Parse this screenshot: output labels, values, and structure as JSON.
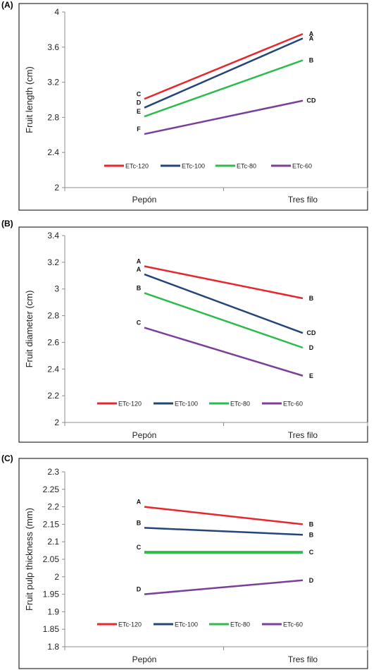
{
  "chart_data": [
    {
      "type": "line",
      "panel_label": "(A)",
      "title": "",
      "xlabel": "",
      "ylabel": "Fruit length (cm)",
      "categories": [
        "Pepón",
        "Tres filo"
      ],
      "ylim": [
        2,
        4
      ],
      "yticks": [
        "2",
        "2.4",
        "2.8",
        "3.2",
        "3.6",
        "4"
      ],
      "grid": false,
      "legend_position": "bottom-inside",
      "series": [
        {
          "name": "ETc-120",
          "color": "#e8262b",
          "values": [
            3.01,
            3.75
          ],
          "letters": [
            "C",
            "A"
          ]
        },
        {
          "name": "ETc-100",
          "color": "#23467a",
          "values": [
            2.91,
            3.7
          ],
          "letters": [
            "D",
            "A"
          ]
        },
        {
          "name": "ETc-80",
          "color": "#2dbb4b",
          "values": [
            2.81,
            3.45
          ],
          "letters": [
            "E",
            "B"
          ]
        },
        {
          "name": "ETc-60",
          "color": "#7b3f99",
          "values": [
            2.61,
            2.99
          ],
          "letters": [
            "F",
            "CD"
          ]
        }
      ]
    },
    {
      "type": "line",
      "panel_label": "(B)",
      "title": "",
      "xlabel": "",
      "ylabel": "Fruit diameter (cm)",
      "categories": [
        "Pepón",
        "Tres filo"
      ],
      "ylim": [
        2,
        3.4
      ],
      "yticks": [
        "2",
        "2.2",
        "2.4",
        "2.6",
        "2.8",
        "3",
        "3.2",
        "3.4"
      ],
      "grid": false,
      "legend_position": "bottom-inside",
      "series": [
        {
          "name": "ETc-120",
          "color": "#e8262b",
          "values": [
            3.17,
            2.93
          ],
          "letters": [
            "A",
            "B"
          ]
        },
        {
          "name": "ETc-100",
          "color": "#23467a",
          "values": [
            3.11,
            2.67
          ],
          "letters": [
            "A",
            "CD"
          ]
        },
        {
          "name": "ETc-80",
          "color": "#2dbb4b",
          "values": [
            2.97,
            2.56
          ],
          "letters": [
            "B",
            "D"
          ]
        },
        {
          "name": "ETc-60",
          "color": "#7b3f99",
          "values": [
            2.71,
            2.35
          ],
          "letters": [
            "C",
            "E"
          ]
        }
      ]
    },
    {
      "type": "line",
      "panel_label": "(C)",
      "title": "",
      "xlabel": "",
      "ylabel": "Fruit pulp thickness (mm)",
      "categories": [
        "Pepón",
        "Tres filo"
      ],
      "ylim": [
        1.8,
        2.3
      ],
      "yticks": [
        "1.8",
        "1.85",
        "1.9",
        "1.95",
        "2",
        "2.05",
        "2.1",
        "2.15",
        "2.2",
        "2.25",
        "2.3"
      ],
      "grid": false,
      "legend_position": "bottom-inside",
      "series": [
        {
          "name": "ETc-120",
          "color": "#e8262b",
          "values": [
            2.2,
            2.15
          ],
          "letters": [
            "A",
            "B"
          ]
        },
        {
          "name": "ETc-100",
          "color": "#23467a",
          "values": [
            2.14,
            2.12
          ],
          "letters": [
            "B",
            "B"
          ]
        },
        {
          "name": "ETc-80",
          "color": "#2dbb4b",
          "values": [
            2.07,
            2.07
          ],
          "letters": [
            "C",
            "C"
          ]
        },
        {
          "name": "ETc-60",
          "color": "#7b3f99",
          "values": [
            1.95,
            1.99
          ],
          "letters": [
            "D",
            "D"
          ]
        }
      ]
    }
  ]
}
